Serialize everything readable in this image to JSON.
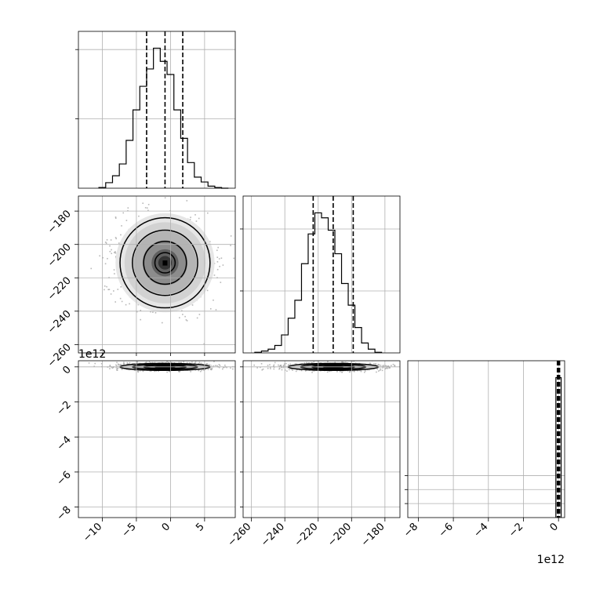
{
  "chart_data": {
    "type": "corner",
    "grid": true,
    "parameters": [
      {
        "range": [
          -13.5,
          9.5
        ],
        "ticks": [
          -10,
          -5,
          0,
          5
        ],
        "tick_labels": [
          "−10",
          "−5",
          "0",
          "5"
        ],
        "offset_label": "",
        "quantiles": [
          -3.5,
          -0.8,
          1.8
        ],
        "hist": {
          "edges": [
            -10.5,
            -9.5,
            -8.5,
            -7.5,
            -6.5,
            -5.5,
            -4.5,
            -3.5,
            -2.5,
            -1.5,
            -0.5,
            0.5,
            1.5,
            2.5,
            3.5,
            4.5,
            5.5,
            6.5,
            7.5,
            8.5
          ],
          "counts": [
            1,
            8,
            18,
            35,
            69,
            113,
            147,
            172,
            202,
            183,
            164,
            113,
            72,
            37,
            16,
            9,
            3,
            1,
            0
          ]
        }
      },
      {
        "range": [
          -265,
          -171
        ],
        "ticks": [
          -260,
          -240,
          -220,
          -200,
          -180
        ],
        "tick_labels": [
          "−260",
          "−240",
          "−220",
          "−200",
          "−180"
        ],
        "offset_label": "",
        "quantiles": [
          -223,
          -211,
          -199
        ],
        "hist": {
          "edges": [
            -258,
            -254,
            -250,
            -246,
            -242,
            -238,
            -234,
            -230,
            -226,
            -222,
            -218,
            -214,
            -210,
            -206,
            -202,
            -198,
            -194,
            -190,
            -186,
            -182
          ],
          "counts": [
            1,
            3,
            6,
            12,
            29,
            56,
            85,
            144,
            192,
            226,
            218,
            198,
            160,
            112,
            77,
            41,
            16,
            6,
            1
          ]
        }
      },
      {
        "range": [
          -8.6,
          0.35
        ],
        "ticks": [
          -8,
          -6,
          -4,
          -2,
          0
        ],
        "tick_labels": [
          "−8",
          "−6",
          "−4",
          "−2",
          "0"
        ],
        "offset_label": "1e12",
        "quantiles": [
          -0.01,
          0,
          0.01
        ],
        "hist": {
          "edges": [
            -0.15,
            0.15
          ],
          "counts": [
            1000
          ]
        }
      }
    ],
    "panels": [
      {
        "row": 1,
        "col": 0,
        "kind": "contour",
        "center": [
          -0.8,
          -211
        ],
        "sigma": [
          3.3,
          13.5
        ]
      },
      {
        "row": 2,
        "col": 0,
        "kind": "contour",
        "center": [
          -0.8,
          0
        ],
        "sigma": [
          3.3,
          0.1
        ]
      },
      {
        "row": 2,
        "col": 1,
        "kind": "contour",
        "center": [
          -211,
          0
        ],
        "sigma": [
          13.5,
          0.1
        ]
      }
    ]
  },
  "colors": {
    "contour": "#000000",
    "grid": "#b0b0b0",
    "hist": "#000000",
    "points": "#9a9a9a"
  }
}
